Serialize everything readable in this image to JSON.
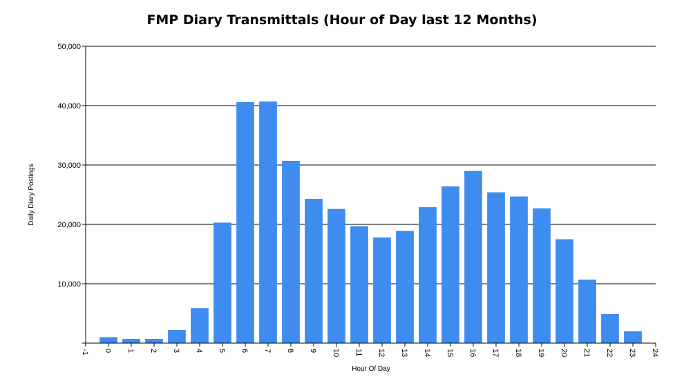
{
  "chart_data": {
    "type": "bar",
    "title": "FMP Diary Transmittals (Hour of Day last 12 Months)",
    "xlabel": "Hour Of Day",
    "ylabel": "Daily Diary Postings",
    "x": [
      0,
      1,
      2,
      3,
      4,
      5,
      6,
      7,
      8,
      9,
      10,
      11,
      12,
      13,
      14,
      15,
      16,
      17,
      18,
      19,
      20,
      21,
      22,
      23
    ],
    "values": [
      1000,
      700,
      700,
      2200,
      5900,
      20300,
      40600,
      40700,
      30700,
      24300,
      22600,
      19700,
      17800,
      18900,
      22900,
      26400,
      29000,
      25400,
      24700,
      22700,
      17500,
      10700,
      4900,
      2000
    ],
    "xlim": [
      -1,
      24
    ],
    "ylim": [
      0,
      50000
    ],
    "x_ticks": [
      "-1",
      "0",
      "1",
      "2",
      "3",
      "4",
      "5",
      "6",
      "7",
      "8",
      "9",
      "10",
      "11",
      "12",
      "13",
      "14",
      "15",
      "16",
      "17",
      "18",
      "19",
      "20",
      "21",
      "22",
      "23",
      "24"
    ],
    "y_ticks": [
      "10,000",
      "20,000",
      "30,000",
      "40,000",
      "50,000"
    ],
    "bar_color": "#3F8CF0",
    "grid": "horizontal",
    "legend": "none"
  }
}
